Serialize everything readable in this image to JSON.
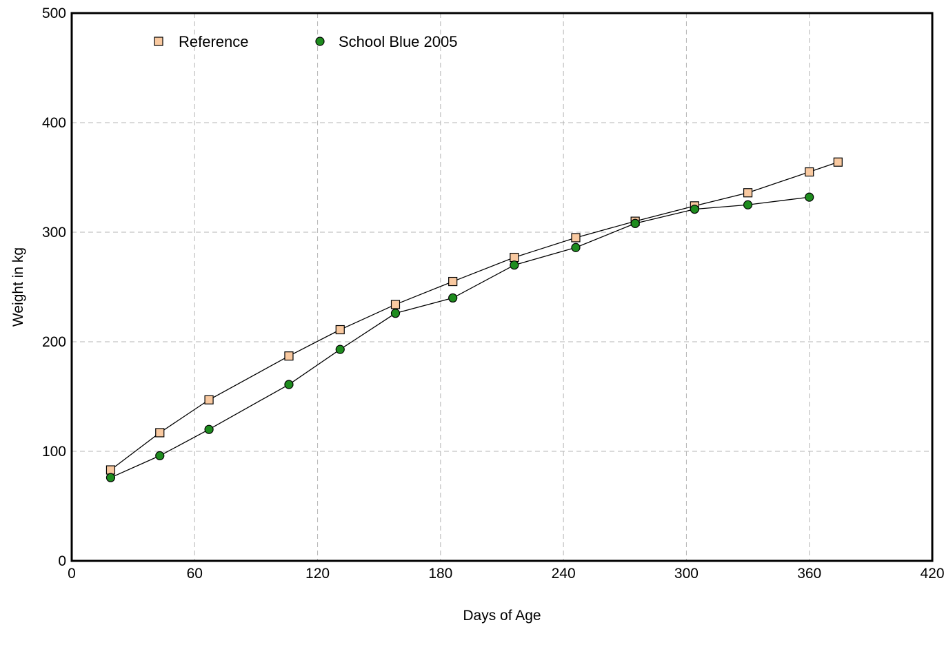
{
  "chart_data": {
    "type": "line",
    "title": "",
    "xlabel": "Days of Age",
    "ylabel": "Weight in kg",
    "xlim": [
      0,
      420
    ],
    "ylim": [
      0,
      500
    ],
    "x_ticks": [
      0,
      60,
      120,
      180,
      240,
      300,
      360,
      420
    ],
    "y_ticks": [
      0,
      100,
      200,
      300,
      400,
      500
    ],
    "x_tick_labels": [
      "0",
      "60",
      "120",
      "180",
      "240",
      "300",
      "360",
      "420"
    ],
    "y_tick_labels": [
      "0",
      "100",
      "200",
      "300",
      "400",
      "500"
    ],
    "grid": true,
    "grid_style": "dashed",
    "legend_position": "top-left",
    "series": [
      {
        "name": "Reference",
        "marker": "square",
        "color": "#f9c9a0",
        "points": [
          {
            "x": 19,
            "y": 83
          },
          {
            "x": 43,
            "y": 117
          },
          {
            "x": 67,
            "y": 147
          },
          {
            "x": 106,
            "y": 187
          },
          {
            "x": 131,
            "y": 211
          },
          {
            "x": 158,
            "y": 234
          },
          {
            "x": 186,
            "y": 255
          },
          {
            "x": 216,
            "y": 277
          },
          {
            "x": 246,
            "y": 295
          },
          {
            "x": 275,
            "y": 310
          },
          {
            "x": 304,
            "y": 324
          },
          {
            "x": 330,
            "y": 336
          },
          {
            "x": 360,
            "y": 355
          },
          {
            "x": 374,
            "y": 364
          }
        ]
      },
      {
        "name": "School Blue 2005",
        "marker": "circle",
        "color": "#1e8c1e",
        "points": [
          {
            "x": 19,
            "y": 76
          },
          {
            "x": 43,
            "y": 96
          },
          {
            "x": 67,
            "y": 120
          },
          {
            "x": 106,
            "y": 161
          },
          {
            "x": 131,
            "y": 193
          },
          {
            "x": 158,
            "y": 226
          },
          {
            "x": 186,
            "y": 240
          },
          {
            "x": 216,
            "y": 270
          },
          {
            "x": 246,
            "y": 286
          },
          {
            "x": 275,
            "y": 308
          },
          {
            "x": 304,
            "y": 321
          },
          {
            "x": 330,
            "y": 325
          },
          {
            "x": 360,
            "y": 332
          }
        ]
      }
    ]
  }
}
